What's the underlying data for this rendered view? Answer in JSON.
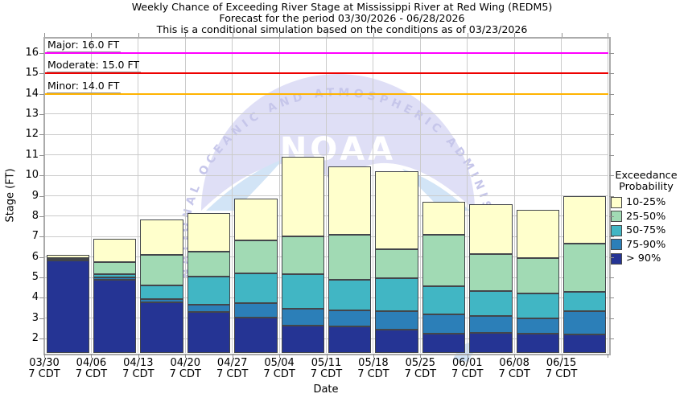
{
  "title": {
    "line1": "Weekly Chance of Exceeding River Stage at Mississippi River at Red Wing (REDM5)",
    "line2": "Forecast for the period 03/30/2026 - 06/28/2026",
    "line3": "This is a conditional simulation based on the conditions as of 03/23/2026"
  },
  "y_axis": {
    "label": "Stage (FT)",
    "ticks": [
      2,
      3,
      4,
      5,
      6,
      7,
      8,
      9,
      10,
      11,
      12,
      13,
      14,
      15,
      16
    ]
  },
  "x_axis": {
    "label": "Date",
    "time_suffix": "7 CDT"
  },
  "thresholds": [
    {
      "name": "Major",
      "value": 16.0,
      "label": "Major: 16.0 FT",
      "color": "#ff00ff"
    },
    {
      "name": "Moderate",
      "value": 15.0,
      "label": "Moderate: 15.0 FT",
      "color": "#ee0000"
    },
    {
      "name": "Minor",
      "value": 14.0,
      "label": "Minor: 14.0 FT",
      "color": "#ffb300"
    }
  ],
  "legend": {
    "title_line1": "Exceedance",
    "title_line2": "Probability",
    "items": [
      {
        "label": "10-25%",
        "color": "#ffffcc"
      },
      {
        "label": "25-50%",
        "color": "#a1dab4"
      },
      {
        "label": "50-75%",
        "color": "#41b6c4"
      },
      {
        "label": "75-90%",
        "color": "#2c7fb8"
      },
      {
        "label": "> 90%",
        "color": "#253494"
      }
    ]
  },
  "watermark": {
    "logo_text": "NOAA",
    "arc_text": "NATIONAL OCEANIC AND ATMOSPHERIC ADMINISTRATION"
  },
  "chart_data": {
    "type": "bar",
    "stacked": true,
    "title": "Weekly Chance of Exceeding River Stage at Mississippi River at Red Wing (REDM5)",
    "xlabel": "Date",
    "ylabel": "Stage (FT)",
    "ylim": [
      1.3,
      16.74
    ],
    "baseline": 1.3,
    "grid": true,
    "legend_position": "right",
    "categories": [
      "03/30",
      "04/06",
      "04/13",
      "04/20",
      "04/27",
      "05/04",
      "05/11",
      "05/18",
      "05/25",
      "06/01",
      "06/08",
      "06/15"
    ],
    "category_time_label": "7 CDT",
    "series_note": "values are cumulative stage tops (FT) of each probability band, stacked bottom to top",
    "series": [
      {
        "name": "> 90%",
        "color": "#253494",
        "tops": [
          5.85,
          4.9,
          3.8,
          3.3,
          3.05,
          2.65,
          2.6,
          2.45,
          2.25,
          2.3,
          2.25,
          2.2
        ]
      },
      {
        "name": "75-90%",
        "color": "#2c7fb8",
        "tops": [
          5.88,
          5.0,
          3.95,
          3.65,
          3.75,
          3.45,
          3.4,
          3.35,
          3.2,
          3.1,
          3.0,
          3.35
        ]
      },
      {
        "name": "50-75%",
        "color": "#41b6c4",
        "tops": [
          5.91,
          5.15,
          4.6,
          5.05,
          5.2,
          5.15,
          4.9,
          4.95,
          4.55,
          4.35,
          4.2,
          4.3
        ]
      },
      {
        "name": "25-50%",
        "color": "#a1dab4",
        "tops": [
          5.96,
          5.75,
          6.1,
          6.25,
          6.8,
          7.0,
          7.1,
          6.4,
          7.1,
          6.15,
          5.95,
          6.65
        ]
      },
      {
        "name": "10-25%",
        "color": "#ffffcc",
        "tops": [
          6.1,
          6.9,
          7.85,
          8.15,
          8.85,
          10.9,
          10.45,
          10.2,
          8.7,
          8.6,
          8.3,
          9.0
        ]
      }
    ]
  }
}
